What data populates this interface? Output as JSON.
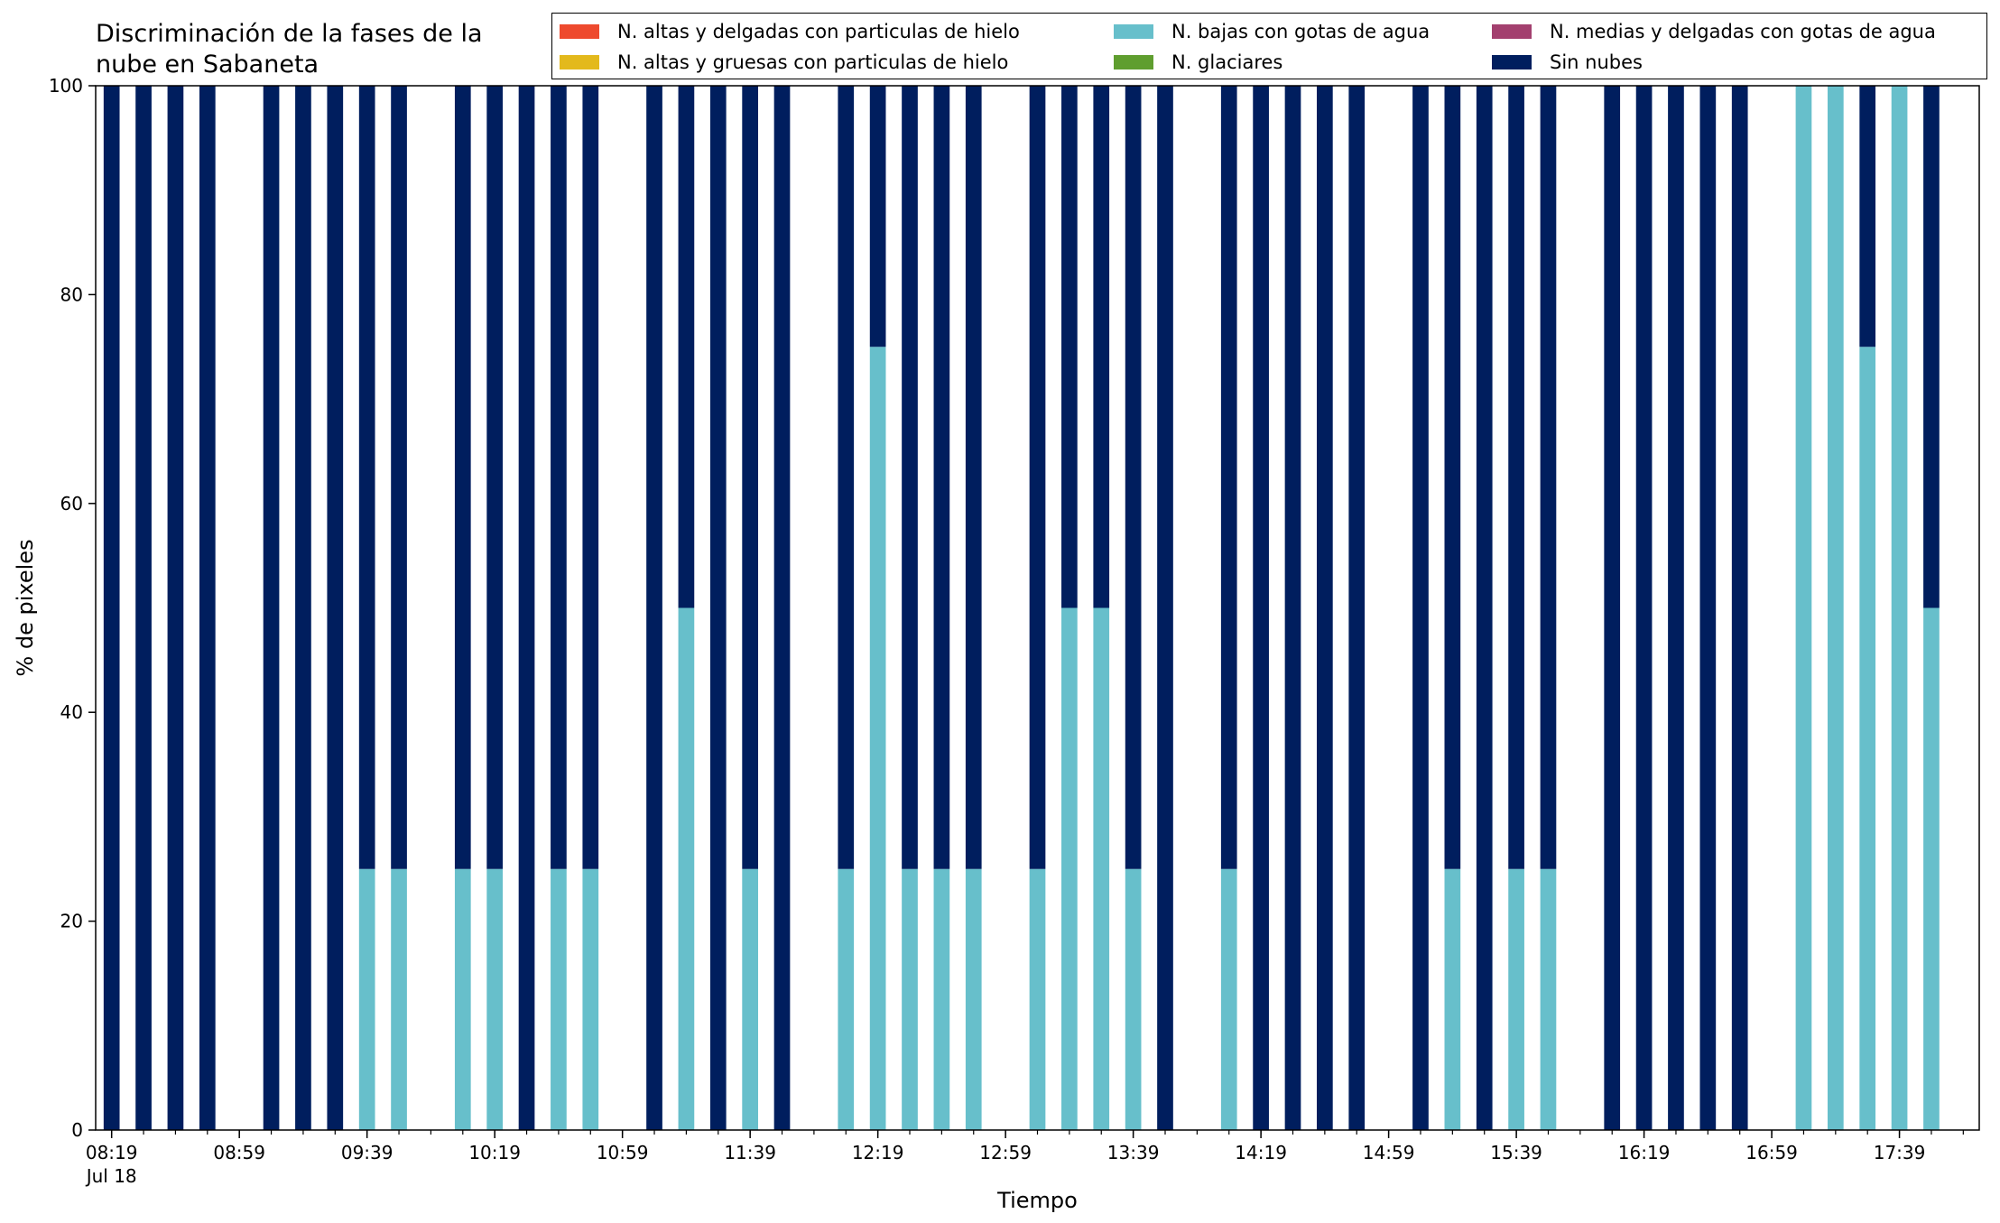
{
  "chart_data": {
    "type": "bar",
    "stacked": true,
    "title": "Discriminación de la fases de la nube en Sabaneta",
    "title_lines": [
      "Discriminación de la fases de la",
      "nube en Sabaneta"
    ],
    "xlabel": "Tiempo",
    "ylabel": "% de pixeles",
    "ylim": [
      0,
      100
    ],
    "yticks": [
      0,
      20,
      40,
      60,
      80,
      100
    ],
    "grid": false,
    "legend_position": "top-right",
    "categories": [
      "08:19",
      "08:29",
      "08:39",
      "08:49",
      "08:59",
      "09:09",
      "09:19",
      "09:29",
      "09:39",
      "09:49",
      "09:59",
      "10:09",
      "10:19",
      "10:29",
      "10:39",
      "10:49",
      "10:59",
      "11:09",
      "11:19",
      "11:29",
      "11:39",
      "11:49",
      "11:59",
      "12:09",
      "12:19",
      "12:29",
      "12:39",
      "12:49",
      "12:59",
      "13:09",
      "13:19",
      "13:29",
      "13:39",
      "13:49",
      "13:59",
      "14:09",
      "14:19",
      "14:29",
      "14:39",
      "14:49",
      "14:59",
      "15:09",
      "15:19",
      "15:29",
      "15:39",
      "15:49",
      "15:59",
      "16:09",
      "16:19",
      "16:29",
      "16:39",
      "16:49",
      "16:59",
      "17:09",
      "17:19",
      "17:29",
      "17:39",
      "17:49",
      "17:59"
    ],
    "xticklabels": [
      {
        "category": "08:19",
        "text": "08:19",
        "sub": "Jul 18"
      },
      {
        "category": "08:59",
        "text": "08:59"
      },
      {
        "category": "09:39",
        "text": "09:39"
      },
      {
        "category": "10:19",
        "text": "10:19"
      },
      {
        "category": "10:59",
        "text": "10:59"
      },
      {
        "category": "11:39",
        "text": "11:39"
      },
      {
        "category": "12:19",
        "text": "12:19"
      },
      {
        "category": "12:59",
        "text": "12:59"
      },
      {
        "category": "13:39",
        "text": "13:39"
      },
      {
        "category": "14:19",
        "text": "14:19"
      },
      {
        "category": "14:59",
        "text": "14:59"
      },
      {
        "category": "15:39",
        "text": "15:39"
      },
      {
        "category": "16:19",
        "text": "16:19"
      },
      {
        "category": "16:59",
        "text": "16:59"
      },
      {
        "category": "17:39",
        "text": "17:39"
      }
    ],
    "series": [
      {
        "name": "N. altas y delgadas con particulas de hielo",
        "color": "#ee4a2e",
        "values": [
          0,
          0,
          0,
          0,
          null,
          0,
          0,
          0,
          0,
          0,
          null,
          0,
          0,
          0,
          0,
          0,
          null,
          0,
          0,
          0,
          0,
          0,
          null,
          0,
          0,
          0,
          0,
          0,
          null,
          0,
          0,
          0,
          0,
          0,
          null,
          0,
          0,
          0,
          0,
          0,
          null,
          0,
          0,
          0,
          0,
          0,
          null,
          0,
          0,
          0,
          0,
          0,
          null,
          0,
          0,
          0,
          0,
          0,
          null
        ]
      },
      {
        "name": "N. altas y gruesas con particulas de hielo",
        "color": "#e3b91c",
        "values": [
          0,
          0,
          0,
          0,
          null,
          0,
          0,
          0,
          0,
          0,
          null,
          0,
          0,
          0,
          0,
          0,
          null,
          0,
          0,
          0,
          0,
          0,
          null,
          0,
          0,
          0,
          0,
          0,
          null,
          0,
          0,
          0,
          0,
          0,
          null,
          0,
          0,
          0,
          0,
          0,
          null,
          0,
          0,
          0,
          0,
          0,
          null,
          0,
          0,
          0,
          0,
          0,
          null,
          0,
          0,
          0,
          0,
          0,
          null
        ]
      },
      {
        "name": "N. bajas con gotas de agua",
        "color": "#67bfcb",
        "values": [
          0,
          0,
          0,
          0,
          null,
          0,
          0,
          0,
          25,
          25,
          null,
          25,
          25,
          0,
          25,
          25,
          null,
          0,
          50,
          0,
          25,
          0,
          null,
          25,
          75,
          25,
          25,
          25,
          null,
          25,
          50,
          50,
          25,
          0,
          null,
          25,
          0,
          0,
          0,
          0,
          null,
          0,
          25,
          0,
          25,
          25,
          null,
          0,
          0,
          0,
          0,
          0,
          null,
          100,
          100,
          75,
          100,
          50,
          null
        ]
      },
      {
        "name": "N. glaciares",
        "color": "#5f9e2f",
        "values": [
          0,
          0,
          0,
          0,
          null,
          0,
          0,
          0,
          0,
          0,
          null,
          0,
          0,
          0,
          0,
          0,
          null,
          0,
          0,
          0,
          0,
          0,
          null,
          0,
          0,
          0,
          0,
          0,
          null,
          0,
          0,
          0,
          0,
          0,
          null,
          0,
          0,
          0,
          0,
          0,
          null,
          0,
          0,
          0,
          0,
          0,
          null,
          0,
          0,
          0,
          0,
          0,
          null,
          0,
          0,
          0,
          0,
          0,
          null
        ]
      },
      {
        "name": "N. medias y delgadas con gotas de agua",
        "color": "#a3406f",
        "values": [
          0,
          0,
          0,
          0,
          null,
          0,
          0,
          0,
          0,
          0,
          null,
          0,
          0,
          0,
          0,
          0,
          null,
          0,
          0,
          0,
          0,
          0,
          null,
          0,
          0,
          0,
          0,
          0,
          null,
          0,
          0,
          0,
          0,
          0,
          null,
          0,
          0,
          0,
          0,
          0,
          null,
          0,
          0,
          0,
          0,
          0,
          null,
          0,
          0,
          0,
          0,
          0,
          null,
          0,
          0,
          0,
          0,
          0,
          null
        ]
      },
      {
        "name": "Sin nubes",
        "color": "#001e5e",
        "values": [
          100,
          100,
          100,
          100,
          null,
          100,
          100,
          100,
          75,
          75,
          null,
          75,
          75,
          100,
          75,
          75,
          null,
          100,
          50,
          100,
          75,
          100,
          null,
          75,
          25,
          75,
          75,
          75,
          null,
          75,
          50,
          50,
          75,
          100,
          null,
          75,
          100,
          100,
          100,
          100,
          null,
          100,
          75,
          100,
          75,
          75,
          null,
          100,
          100,
          100,
          100,
          100,
          null,
          0,
          0,
          25,
          0,
          50,
          null
        ]
      }
    ]
  }
}
